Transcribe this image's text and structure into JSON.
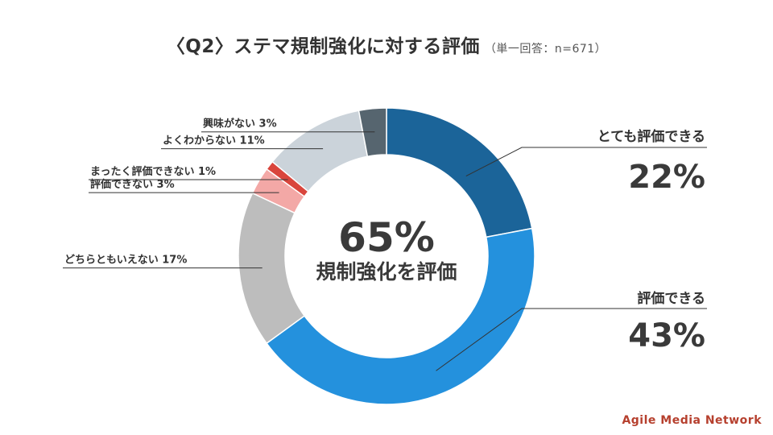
{
  "title": {
    "main": "〈Q2〉ステマ規制強化に対する評価",
    "sub": "（単一回答：n=671）"
  },
  "center": {
    "value": "65%",
    "caption": "規制強化を評価"
  },
  "brand": "Agile Media Network",
  "colors": {
    "very_positive": "#1b6499",
    "positive": "#2491dd",
    "neutral": "#bdbdbd",
    "negative": "#f3a8a6",
    "very_negative": "#d9453c",
    "unsure": "#cbd3da",
    "not_interested": "#56656f"
  },
  "chart_data": {
    "type": "pie",
    "variant": "donut",
    "title": "〈Q2〉ステマ規制強化に対する評価",
    "subtitle": "（単一回答：n=671）",
    "slices": [
      {
        "label": "とても評価できる",
        "value": 22,
        "value_label": "22%",
        "color": "#1b6499"
      },
      {
        "label": "評価できる",
        "value": 43,
        "value_label": "43%",
        "color": "#2491dd"
      },
      {
        "label": "どちらともいえない 17%",
        "value": 17,
        "color": "#bdbdbd"
      },
      {
        "label": "評価できない 3%",
        "value": 3,
        "color": "#f3a8a6"
      },
      {
        "label": "まったく評価できない 1%",
        "value": 1,
        "color": "#d9453c"
      },
      {
        "label": "よくわからない 11%",
        "value": 11,
        "color": "#cbd3da"
      },
      {
        "label": "興味がない 3%",
        "value": 3,
        "color": "#56656f"
      }
    ]
  }
}
